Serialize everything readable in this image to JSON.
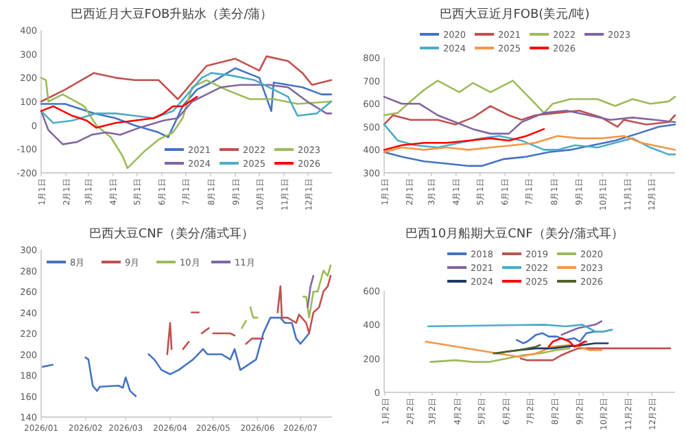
{
  "chart_data": [
    {
      "type": "line",
      "title": "巴西近月大豆FOB升贴水（美分/蒲）",
      "legend": "bottom right",
      "xlim": [
        "--01-01",
        "--12-31"
      ],
      "ylim": [
        -200,
        400
      ],
      "yticks": [
        -200,
        -100,
        0,
        100,
        200,
        300,
        400
      ],
      "xticks": [
        {
          "value": "--01-01",
          "label": "1月1日"
        },
        {
          "value": "--02-01",
          "label": "2月1日"
        },
        {
          "value": "--03-01",
          "label": "3月1日"
        },
        {
          "value": "--04-01",
          "label": "4月1日"
        },
        {
          "value": "--05-01",
          "label": "5月1日"
        },
        {
          "value": "--06-01",
          "label": "6月1日"
        },
        {
          "value": "--07-01",
          "label": "7月1日"
        },
        {
          "value": "--08-01",
          "label": "8月1日"
        },
        {
          "value": "--09-01",
          "label": "9月1日"
        },
        {
          "value": "--10-01",
          "label": "10月1日"
        },
        {
          "value": "--11-01",
          "label": "11月1日"
        },
        {
          "value": "--12-01",
          "label": "12月1日"
        }
      ],
      "series": [
        {
          "name": "2021",
          "color": "#4472c4",
          "x": [
            "--01-01",
            "--01-31",
            "--03-08",
            "--04-04",
            "--04-28",
            "--05-28",
            "--06-09",
            "--06-27",
            "--07-15",
            "--08-02",
            "--09-01",
            "--10-01",
            "--10-16",
            "--10-19",
            "--11-06",
            "--11-24",
            "--12-18",
            "--12-30"
          ],
          "values": [
            90,
            90,
            50,
            30,
            0,
            -30,
            -50,
            80,
            150,
            180,
            240,
            200,
            60,
            180,
            170,
            160,
            130,
            130
          ]
        },
        {
          "name": "2022",
          "color": "#c0504d",
          "x": [
            "--01-01",
            "--01-31",
            "--03-08",
            "--04-04",
            "--04-28",
            "--05-28",
            "--06-21",
            "--07-27",
            "--09-01",
            "--10-01",
            "--10-10",
            "--11-06",
            "--11-24",
            "--12-06",
            "--12-30"
          ],
          "values": [
            100,
            150,
            220,
            200,
            190,
            190,
            110,
            250,
            280,
            230,
            290,
            270,
            220,
            170,
            190
          ]
        },
        {
          "name": "2023",
          "color": "#9bbb59",
          "x": [
            "--01-01",
            "--01-07",
            "--01-10",
            "--01-28",
            "--02-24",
            "--03-11",
            "--03-29",
            "--04-13",
            "--04-19",
            "--05-10",
            "--05-28",
            "--06-15",
            "--06-27",
            "--07-09",
            "--07-27",
            "--08-20",
            "--09-19",
            "--10-19",
            "--11-18",
            "--12-30"
          ],
          "values": [
            200,
            190,
            100,
            130,
            80,
            0,
            -50,
            -130,
            -180,
            -110,
            -60,
            -30,
            30,
            160,
            190,
            150,
            110,
            110,
            90,
            100
          ]
        },
        {
          "name": "2024",
          "color": "#8064a2",
          "x": [
            "--01-01",
            "--01-10",
            "--01-28",
            "--02-15",
            "--03-05",
            "--03-23",
            "--04-10",
            "--05-04",
            "--06-03",
            "--06-21",
            "--07-09",
            "--07-27",
            "--08-14",
            "--09-07",
            "--10-13",
            "--11-06",
            "--11-30",
            "--12-24",
            "--12-30"
          ],
          "values": [
            60,
            -20,
            -80,
            -70,
            -40,
            -30,
            -40,
            -10,
            20,
            30,
            100,
            130,
            160,
            170,
            170,
            160,
            100,
            50,
            50
          ]
        },
        {
          "name": "2025",
          "color": "#4bacc6",
          "x": [
            "--01-01",
            "--01-16",
            "--02-09",
            "--03-11",
            "--04-04",
            "--04-28",
            "--05-22",
            "--06-15",
            "--07-03",
            "--07-21",
            "--08-02",
            "--08-26",
            "--09-25",
            "--10-19",
            "--11-06",
            "--11-18",
            "--12-12",
            "--12-30"
          ],
          "values": [
            60,
            10,
            20,
            50,
            50,
            40,
            30,
            60,
            130,
            200,
            220,
            210,
            190,
            150,
            120,
            40,
            50,
            100
          ]
        },
        {
          "name": "2026",
          "color": "#ff0000",
          "x": [
            "--01-01",
            "--01-16",
            "--02-09",
            "--02-27",
            "--03-11",
            "--04-04",
            "--04-28",
            "--05-22",
            "--06-03",
            "--06-15",
            "--06-27",
            "--07-15"
          ],
          "values": [
            60,
            80,
            40,
            20,
            -10,
            10,
            20,
            30,
            50,
            80,
            80,
            120
          ]
        }
      ]
    },
    {
      "type": "line",
      "title": "巴西大豆近月FOB(美元/吨)",
      "legend": "top",
      "xlim": [
        "--01-01",
        "--12-31"
      ],
      "ylim": [
        300,
        800
      ],
      "yticks": [
        300,
        400,
        500,
        600,
        700,
        800
      ],
      "xticks": [
        {
          "value": "--01-01",
          "label": "1月1日"
        },
        {
          "value": "--02-01",
          "label": "2月1日"
        },
        {
          "value": "--03-01",
          "label": "3月1日"
        },
        {
          "value": "--04-01",
          "label": "4月1日"
        },
        {
          "value": "--05-01",
          "label": "5月1日"
        },
        {
          "value": "--06-01",
          "label": "6月1日"
        },
        {
          "value": "--07-01",
          "label": "7月1日"
        },
        {
          "value": "--08-01",
          "label": "8月1日"
        },
        {
          "value": "--09-01",
          "label": "9月1日"
        },
        {
          "value": "--10-01",
          "label": "10月1日"
        },
        {
          "value": "--11-01",
          "label": "11月1日"
        },
        {
          "value": "--12-01",
          "label": "12月1日"
        }
      ],
      "series": [
        {
          "name": "2020",
          "color": "#4472c4",
          "x": [
            "--01-01",
            "--01-23",
            "--02-20",
            "--03-20",
            "--04-17",
            "--05-03",
            "--05-31",
            "--06-28",
            "--07-26",
            "--08-22",
            "--09-19",
            "--10-17",
            "--11-14",
            "--12-11",
            "--12-31"
          ],
          "values": [
            390,
            370,
            350,
            340,
            330,
            330,
            360,
            370,
            390,
            400,
            420,
            440,
            470,
            500,
            510
          ]
        },
        {
          "name": "2021",
          "color": "#c0504d",
          "x": [
            "--01-01",
            "--01-12",
            "--02-03",
            "--03-09",
            "--03-31",
            "--04-22",
            "--05-14",
            "--06-06",
            "--06-22",
            "--07-09",
            "--08-06",
            "--09-02",
            "--09-30",
            "--10-20",
            "--10-28",
            "--11-25",
            "--12-23",
            "--12-31"
          ],
          "values": [
            510,
            550,
            530,
            530,
            510,
            540,
            590,
            550,
            530,
            550,
            560,
            570,
            540,
            500,
            530,
            510,
            520,
            550
          ]
        },
        {
          "name": "2022",
          "color": "#9bbb59",
          "x": [
            "--01-01",
            "--01-18",
            "--02-03",
            "--02-20",
            "--03-09",
            "--04-05",
            "--04-22",
            "--05-14",
            "--06-11",
            "--07-09",
            "--07-20",
            "--07-31",
            "--08-22",
            "--09-25",
            "--10-17",
            "--11-08",
            "--11-30",
            "--12-23",
            "--12-31"
          ],
          "values": [
            550,
            560,
            610,
            660,
            700,
            650,
            690,
            650,
            700,
            600,
            560,
            600,
            620,
            620,
            590,
            620,
            600,
            610,
            630
          ]
        },
        {
          "name": "2023",
          "color": "#8064a2",
          "x": [
            "--01-01",
            "--01-23",
            "--02-14",
            "--03-09",
            "--03-31",
            "--04-22",
            "--05-14",
            "--06-06",
            "--06-22",
            "--07-20",
            "--08-17",
            "--09-14",
            "--10-11",
            "--11-08",
            "--12-06",
            "--12-31"
          ],
          "values": [
            630,
            600,
            600,
            550,
            520,
            490,
            470,
            470,
            520,
            560,
            570,
            550,
            530,
            540,
            530,
            520
          ]
        },
        {
          "name": "2024",
          "color": "#4bacc6",
          "x": [
            "--01-01",
            "--01-18",
            "--02-09",
            "--03-09",
            "--04-05",
            "--05-03",
            "--05-25",
            "--06-22",
            "--07-20",
            "--08-06",
            "--08-28",
            "--09-25",
            "--10-17",
            "--11-08",
            "--11-30",
            "--12-23",
            "--12-31"
          ],
          "values": [
            510,
            440,
            420,
            410,
            430,
            450,
            460,
            440,
            400,
            400,
            420,
            410,
            430,
            450,
            410,
            380,
            380
          ]
        },
        {
          "name": "2025",
          "color": "#f79646",
          "x": [
            "--01-01",
            "--01-23",
            "--02-20",
            "--03-20",
            "--04-17",
            "--05-14",
            "--06-11",
            "--07-09",
            "--08-06",
            "--09-02",
            "--09-30",
            "--10-28",
            "--11-19",
            "--12-17",
            "--12-31"
          ],
          "values": [
            390,
            410,
            400,
            410,
            400,
            410,
            420,
            430,
            460,
            450,
            450,
            460,
            430,
            410,
            400
          ]
        },
        {
          "name": "2026",
          "color": "#ff0000",
          "x": [
            "--01-01",
            "--01-23",
            "--02-20",
            "--03-20",
            "--04-17",
            "--05-14",
            "--06-06",
            "--06-28",
            "--07-20"
          ],
          "values": [
            400,
            420,
            430,
            430,
            440,
            450,
            440,
            460,
            490
          ]
        }
      ]
    },
    {
      "type": "line",
      "title": "巴西大豆CNF（美分/蒲式耳）",
      "legend": "top left",
      "xlim": [
        "2026-01-01",
        "2026-07-23"
      ],
      "ylim": [
        140,
        300
      ],
      "yticks": [
        140,
        160,
        180,
        200,
        220,
        240,
        260,
        280,
        300
      ],
      "xticks": [
        {
          "value": "2026-01-01",
          "label": "2026/01"
        },
        {
          "value": "2026-02-01",
          "label": "2026/02"
        },
        {
          "value": "2026-03-01",
          "label": "2026/03"
        },
        {
          "value": "2026-04-01",
          "label": "2026/04"
        },
        {
          "value": "2026-05-01",
          "label": "2026/05"
        },
        {
          "value": "2026-06-01",
          "label": "2026/06"
        },
        {
          "value": "2026-07-01",
          "label": "2026/07"
        }
      ],
      "series": [
        {
          "name": "8月",
          "color": "#4472c4",
          "x": [
            "2026-01-02",
            "2026-01-09",
            "2026-01-20",
            "2026-02-01",
            "2026-02-03",
            "2026-02-06",
            "2026-02-09",
            "2026-02-11",
            "2026-02-24",
            "2026-02-27",
            "2026-03-01",
            "2026-03-04",
            "2026-03-08",
            "2026-03-12",
            "2026-03-17",
            "2026-03-21",
            "2026-03-26",
            "2026-04-01",
            "2026-04-07",
            "2026-04-12",
            "2026-04-17",
            "2026-04-24",
            "2026-04-27",
            "2026-05-07",
            "2026-05-13",
            "2026-05-16",
            "2026-05-20",
            "2026-05-31",
            "2026-06-05",
            "2026-06-10",
            "2026-06-17",
            "2026-06-20",
            "2026-06-25",
            "2026-06-28",
            "2026-07-01",
            "2026-07-07"
          ],
          "values": [
            188,
            190,
            null,
            197,
            195,
            170,
            165,
            169,
            170,
            168,
            178,
            165,
            160,
            null,
            200,
            195,
            185,
            181,
            185,
            190,
            195,
            205,
            200,
            200,
            195,
            205,
            185,
            195,
            220,
            235,
            235,
            230,
            230,
            215,
            210,
            220
          ]
        },
        {
          "name": "9月",
          "color": "#c0504d",
          "x": [
            "2026-03-30",
            "2026-04-01",
            "2026-04-02",
            "2026-04-07",
            "2026-04-10",
            "2026-04-14",
            "2026-04-15",
            "2026-04-16",
            "2026-04-21",
            "2026-04-22",
            "2026-04-23",
            "2026-04-28",
            "2026-04-29",
            "2026-05-01",
            "2026-05-13",
            "2026-05-16",
            "2026-05-18",
            "2026-05-24",
            "2026-05-28",
            "2026-06-05",
            "2026-06-10",
            "2026-06-15",
            "2026-06-17",
            "2026-06-18",
            "2026-06-22",
            "2026-06-28",
            "2026-06-30",
            "2026-07-05",
            "2026-07-07",
            "2026-07-10",
            "2026-07-14",
            "2026-07-17",
            "2026-07-20",
            "2026-07-22"
          ],
          "values": [
            200,
            230,
            205,
            null,
            205,
            212,
            null,
            240,
            240,
            null,
            220,
            225,
            null,
            220,
            220,
            218,
            null,
            210,
            215,
            215,
            null,
            240,
            265,
            235,
            235,
            230,
            238,
            230,
            220,
            240,
            245,
            260,
            265,
            275
          ]
        },
        {
          "name": "10月",
          "color": "#9bbb59",
          "x": [
            "2026-05-21",
            "2026-05-24",
            "2026-05-25",
            "2026-05-27",
            "2026-05-29",
            "2026-06-01",
            "2026-06-10",
            "2026-07-03",
            "2026-07-05",
            "2026-07-07",
            "2026-07-10",
            "2026-07-13",
            "2026-07-15",
            "2026-07-17",
            "2026-07-20",
            "2026-07-22"
          ],
          "values": [
            225,
            232,
            null,
            245,
            235,
            235,
            null,
            255,
            255,
            235,
            260,
            260,
            270,
            280,
            275,
            285
          ]
        },
        {
          "name": "11月",
          "color": "#8064a2",
          "x": [
            "2026-07-06",
            "2026-07-08",
            "2026-07-10"
          ],
          "values": [
            245,
            265,
            275
          ]
        }
      ]
    },
    {
      "type": "line",
      "title": "巴西10月船期大豆CNF（美分/蒲式耳）",
      "legend": "top",
      "xlim": [
        "--01-01",
        "--12-31"
      ],
      "ylim": [
        0,
        600
      ],
      "yticks": [
        0,
        200,
        400,
        600
      ],
      "xticks": [
        {
          "value": "--01-02",
          "label": "1月2日"
        },
        {
          "value": "--02-02",
          "label": "2月2日"
        },
        {
          "value": "--03-02",
          "label": "3月2日"
        },
        {
          "value": "--04-02",
          "label": "4月2日"
        },
        {
          "value": "--05-02",
          "label": "5月2日"
        },
        {
          "value": "--06-02",
          "label": "6月2日"
        },
        {
          "value": "--07-02",
          "label": "7月2日"
        },
        {
          "value": "--08-02",
          "label": "8月2日"
        },
        {
          "value": "--09-02",
          "label": "9月2日"
        },
        {
          "value": "--10-02",
          "label": "10月2日"
        },
        {
          "value": "--11-02",
          "label": "11月2日"
        },
        {
          "value": "--12-02",
          "label": "12月2日"
        }
      ],
      "series": [
        {
          "name": "2018",
          "color": "#4472c4",
          "x": [
            "--06-16",
            "--06-24",
            "--06-29",
            "--07-10",
            "--07-18",
            "--07-26",
            "--08-05",
            "--08-16",
            "--08-27",
            "--09-03",
            "--09-11",
            "--09-22",
            "--10-03",
            "--10-13"
          ],
          "values": [
            310,
            290,
            300,
            340,
            350,
            330,
            330,
            310,
            320,
            300,
            350,
            360,
            360,
            370
          ]
        },
        {
          "name": "2019",
          "color": "#c0504d",
          "x": [
            "--06-21",
            "--06-29",
            "--07-10",
            "--07-31",
            "--08-11",
            "--08-21",
            "--09-01",
            "--09-11",
            "--09-22",
            "--10-13",
            "--12-25"
          ],
          "values": [
            200,
            190,
            190,
            190,
            220,
            240,
            260,
            260,
            260,
            260,
            260
          ]
        },
        {
          "name": "2020",
          "color": "#9bbb59",
          "x": [
            "--02-28",
            "--03-31",
            "--04-22",
            "--05-13",
            "--06-03",
            "--06-24",
            "--07-15",
            "--08-05",
            "--08-21"
          ],
          "values": [
            180,
            190,
            180,
            180,
            200,
            220,
            230,
            250,
            260
          ]
        },
        {
          "name": "2021",
          "color": "#8064a2",
          "x": [
            "--08-11",
            "--08-21",
            "--09-01",
            "--09-22",
            "--09-30"
          ],
          "values": [
            340,
            360,
            380,
            400,
            420
          ]
        },
        {
          "name": "2022",
          "color": "#4bacc6",
          "x": [
            "--02-25",
            "--07-20",
            "--08-16",
            "--09-06",
            "--09-14",
            "--09-22",
            "--10-03",
            "--10-13"
          ],
          "values": [
            390,
            400,
            390,
            400,
            380,
            360,
            360,
            370
          ]
        },
        {
          "name": "2023",
          "color": "#f79646",
          "x": [
            "--02-22",
            "--05-23",
            "--06-19",
            "--07-10",
            "--07-31",
            "--08-21",
            "--09-01",
            "--09-14",
            "--09-30"
          ],
          "values": [
            300,
            230,
            210,
            230,
            270,
            280,
            270,
            250,
            250
          ]
        },
        {
          "name": "2024",
          "color": "#1f3864",
          "x": [
            "--05-21",
            "--06-03",
            "--06-19",
            "--07-10",
            "--07-31",
            "--08-16",
            "--09-06",
            "--09-22",
            "--10-08"
          ],
          "values": [
            230,
            240,
            250,
            260,
            260,
            270,
            280,
            290,
            290
          ]
        },
        {
          "name": "2025",
          "color": "#ff0000",
          "x": [
            "--07-26",
            "--07-31",
            "--08-11",
            "--08-21",
            "--08-27",
            "--09-01",
            "--09-09",
            "--09-11"
          ],
          "values": [
            270,
            300,
            320,
            300,
            270,
            280,
            300,
            300
          ]
        },
        {
          "name": "2026",
          "color": "#4f6228",
          "x": [
            "--05-18",
            "--06-03",
            "--06-19",
            "--07-10",
            "--07-15"
          ],
          "values": [
            230,
            240,
            250,
            270,
            280
          ]
        }
      ]
    }
  ]
}
